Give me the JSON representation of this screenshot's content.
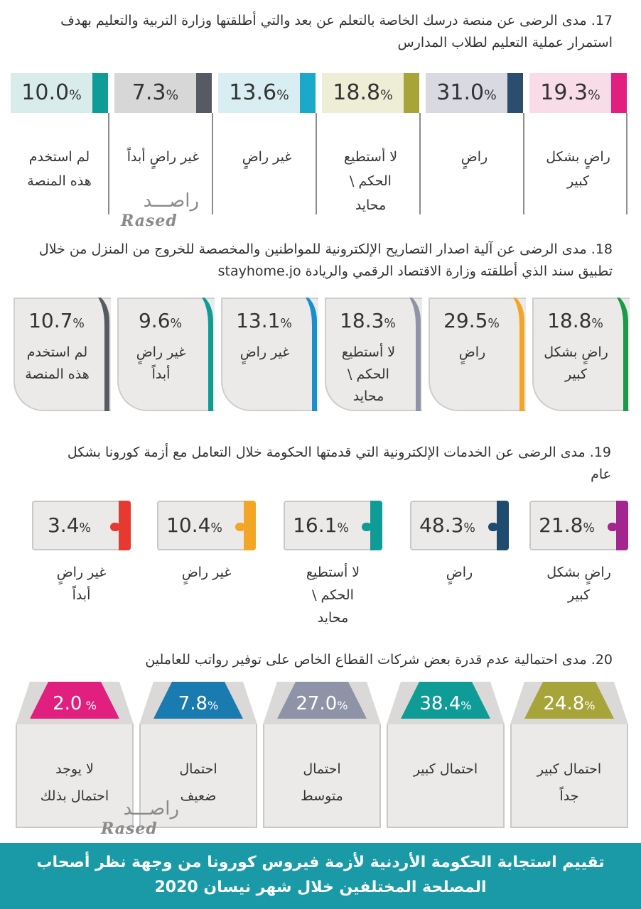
{
  "chart_data": [
    {
      "type": "bar",
      "title": "17.  مدى الرضى عن منصة درسك الخاصة بالتعلم عن بعد والتي أطلقتها وزارة التربية والتعليم بهدف استمرار عملية التعليم لطلاب المدارس",
      "categories": [
        "راضٍ بشكل كبير",
        "راضٍ",
        "لا أستطيع الحكم \\ محايد",
        "غير راضٍ",
        "غير راضٍ أبداً",
        "لم استخدم هذه المنصة"
      ],
      "values": [
        19.3,
        31.0,
        18.8,
        13.6,
        7.3,
        10.0
      ],
      "labels": [
        "19.3%",
        "31.0%",
        "18.8%",
        "13.6%",
        "7.3%",
        "10.0%"
      ],
      "colors": [
        "#e01f7f",
        "#2c4e6e",
        "#a7a43a",
        "#1aa9c9",
        "#555a63",
        "#0f9c97"
      ],
      "bg_colors": [
        "#f8dde8",
        "#d9d9e2",
        "#eeeed6",
        "#d9eef2",
        "#d7d7d8",
        "#d9ecec"
      ],
      "label_lines": [
        [
          "راضٍ بشكل",
          "كبير"
        ],
        [
          "راضٍ"
        ],
        [
          "لا أستطيع",
          "الحكم \\",
          "محايد"
        ],
        [
          "غير راضٍ"
        ],
        [
          "غير راضٍ أبداً"
        ],
        [
          "لم استخدم",
          "هذه المنصة"
        ]
      ]
    },
    {
      "type": "bar",
      "title": "18.  مدى الرضى عن آلية اصدار التصاريح الإلكترونية للمواطنين والمخصصة للخروج من المنزل من خلال تطبيق سند الذي أطلقته وزارة الاقتصاد الرقمي والريادة stayhome.jo",
      "categories": [
        "راضٍ بشكل كبير",
        "راضٍ",
        "لا أستطيع الحكم \\ محايد",
        "غير راضٍ",
        "غير راضٍ أبداً",
        "لم استخدم هذه المنصة"
      ],
      "values": [
        18.8,
        29.5,
        18.3,
        13.1,
        9.6,
        10.7
      ],
      "labels": [
        "18.8%",
        "29.5%",
        "18.3%",
        "13.1%",
        "9.6%",
        "10.7%"
      ],
      "colors": [
        "#1a9a4a",
        "#f3a626",
        "#8e93a7",
        "#1a8fcf",
        "#0f9c97",
        "#555a63"
      ],
      "label_lines": [
        [
          "راضٍ بشكل",
          "كبير"
        ],
        [
          "راضٍ"
        ],
        [
          "لا أستطيع",
          "الحكم \\",
          "محايد"
        ],
        [
          "غير راضٍ"
        ],
        [
          "غير راضٍ",
          "أبداً"
        ],
        [
          "لم استخدم",
          "هذه المنصة"
        ]
      ]
    },
    {
      "type": "bar",
      "title": "19.  مدى الرضى عن الخدمات الإلكترونية التي قدمتها الحكومة خلال التعامل مع أزمة كورونا بشكل عام",
      "categories": [
        "راضٍ بشكل كبير",
        "راضٍ",
        "لا أستطيع الحكم \\ محايد",
        "غير راضٍ",
        "غير راضٍ أبداً"
      ],
      "values": [
        21.8,
        48.3,
        16.1,
        10.4,
        3.4
      ],
      "labels": [
        "21.8%",
        "48.3%",
        "16.1%",
        "10.4%",
        "3.4%"
      ],
      "colors": [
        "#a3268f",
        "#1f4b6e",
        "#0f9c97",
        "#f3a626",
        "#e63a30"
      ],
      "label_lines": [
        [
          "راضٍ بشكل",
          "كبير"
        ],
        [
          "راضٍ"
        ],
        [
          "لا أستطيع",
          "الحكم \\",
          "محايد"
        ],
        [
          "غير راضٍ"
        ],
        [
          "غير راضٍ",
          "أبداً"
        ]
      ]
    },
    {
      "type": "bar",
      "title": "20.  مدى احتمالية عدم قدرة بعض شركات القطاع الخاص على توفير رواتب للعاملين",
      "categories": [
        "احتمال كبير جداً",
        "احتمال كبير",
        "احتمال متوسط",
        "احتمال ضعيف",
        "لا يوجد احتمال بذلك"
      ],
      "values": [
        24.8,
        38.4,
        27.0,
        7.8,
        2.0
      ],
      "labels": [
        "24.8%",
        "38.4%",
        "27.0%",
        "7.8%",
        "2.0 %"
      ],
      "colors": [
        "#a7a43a",
        "#0f9c97",
        "#8e93a7",
        "#1a7bb0",
        "#e01f7f"
      ],
      "label_lines": [
        [
          "احتمال كبير",
          "جداً"
        ],
        [
          "احتمال كبير"
        ],
        [
          "احتمال",
          "متوسط"
        ],
        [
          "احتمال",
          "ضعيف"
        ],
        [
          "لا يوجد",
          "احتمال بذلك"
        ]
      ]
    }
  ],
  "q17": {
    "title": "17.  مدى الرضى عن منصة درسك الخاصة بالتعلم عن بعد والتي أطلقتها وزارة التربية والتعليم بهدف استمرار عملية التعليم لطلاب المدارس"
  },
  "q18": {
    "title": "18.  مدى الرضى عن آلية اصدار التصاريح الإلكترونية للمواطنين والمخصصة للخروج من المنزل من خلال تطبيق سند الذي أطلقته وزارة الاقتصاد الرقمي والريادة stayhome.jo"
  },
  "q19": {
    "title": "19.  مدى الرضى عن الخدمات الإلكترونية التي قدمتها الحكومة خلال التعامل مع أزمة كورونا بشكل عام"
  },
  "q20": {
    "title": "20.  مدى احتمالية عدم قدرة بعض شركات القطاع الخاص على توفير رواتب للعاملين"
  },
  "footer": {
    "line1": "تقييم استجابة الحكومة الأردنية لأزمة فيروس كورونا من وجهة نظر أصحاب",
    "line2": "المصلحة المختلفين خلال شهر نيسان 2020"
  },
  "watermark": {
    "arabic": "راصـــد",
    "latin": "Rased"
  }
}
